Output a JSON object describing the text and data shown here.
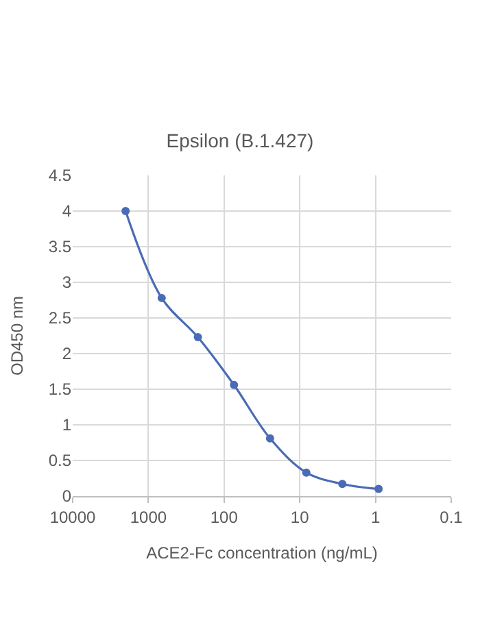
{
  "chart_data": {
    "type": "line",
    "title": "Epsilon (B.1.427)",
    "xlabel": "ACE2-Fc concentration (ng/mL)",
    "ylabel": "OD450 nm",
    "x": [
      2000,
      667,
      222,
      74,
      24.7,
      8.2,
      2.74,
      0.91
    ],
    "series": [
      {
        "color": "#4a6bb5",
        "values": [
          4.0,
          2.78,
          2.23,
          1.56,
          0.81,
          0.33,
          0.17,
          0.1
        ]
      }
    ],
    "log": "x",
    "xlim": [
      10000,
      0.1
    ],
    "xticks": [
      10000,
      1000,
      100,
      10,
      1,
      0.1
    ],
    "ylim": [
      0,
      4.5
    ],
    "yticks": [
      0,
      0.5,
      1,
      1.5,
      2,
      2.5,
      3,
      3.5,
      4,
      4.5
    ],
    "grid": true,
    "marker": "circle",
    "line_style": "solid"
  }
}
